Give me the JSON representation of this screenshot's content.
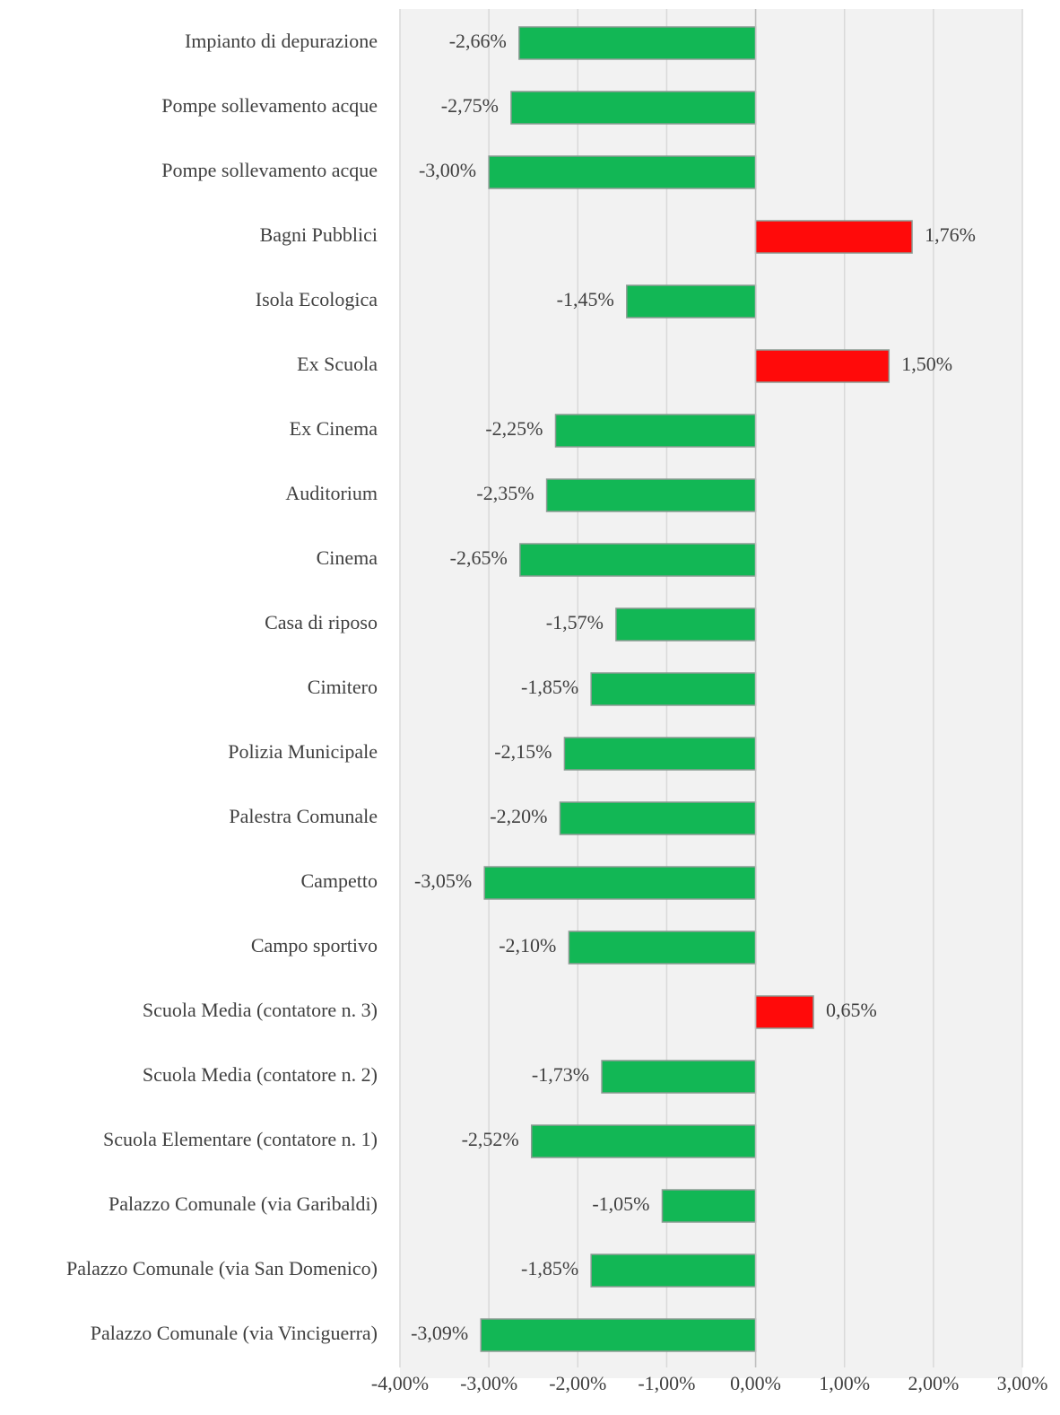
{
  "chart_data": {
    "type": "barh",
    "categories": [
      "Impianto di depurazione",
      "Pompe sollevamento acque",
      "Pompe sollevamento acque",
      "Bagni Pubblici",
      "Isola Ecologica",
      "Ex Scuola",
      "Ex Cinema",
      "Auditorium",
      "Cinema",
      "Casa di riposo",
      "Cimitero",
      "Polizia Municipale",
      "Palestra Comunale",
      "Campetto",
      "Campo sportivo",
      "Scuola Media (contatore n. 3)",
      "Scuola Media (contatore n. 2)",
      "Scuola Elementare (contatore n. 1)",
      "Palazzo Comunale (via Garibaldi)",
      "Palazzo Comunale (via San Domenico)",
      "Palazzo Comunale (via Vinciguerra)"
    ],
    "values": [
      -2.66,
      -2.75,
      -3.0,
      1.76,
      -1.45,
      1.5,
      -2.25,
      -2.35,
      -2.65,
      -1.57,
      -1.85,
      -2.15,
      -2.2,
      -3.05,
      -2.1,
      0.65,
      -1.73,
      -2.52,
      -1.05,
      -1.85,
      -3.09
    ],
    "value_labels": [
      "-2,66%",
      "-2,75%",
      "-3,00%",
      "1,76%",
      "-1,45%",
      "1,50%",
      "-2,25%",
      "-2,35%",
      "-2,65%",
      "-1,57%",
      "-1,85%",
      "-2,15%",
      "-2,20%",
      "-3,05%",
      "-2,10%",
      "0,65%",
      "-1,73%",
      "-2,52%",
      "-1,05%",
      "-1,85%",
      "-3,09%"
    ],
    "negative_color": "#12b755",
    "positive_color": "#ff0a0a",
    "xlim": [
      -4,
      3
    ],
    "xticks": [
      {
        "value": -4,
        "label": "-4,00%"
      },
      {
        "value": -3,
        "label": "-3,00%"
      },
      {
        "value": -2,
        "label": "-2,00%"
      },
      {
        "value": -1,
        "label": "-1,00%"
      },
      {
        "value": 0,
        "label": "0,00%"
      },
      {
        "value": 1,
        "label": "1,00%"
      },
      {
        "value": 2,
        "label": "2,00%"
      },
      {
        "value": 3,
        "label": "3,00%"
      }
    ],
    "grid": true
  }
}
